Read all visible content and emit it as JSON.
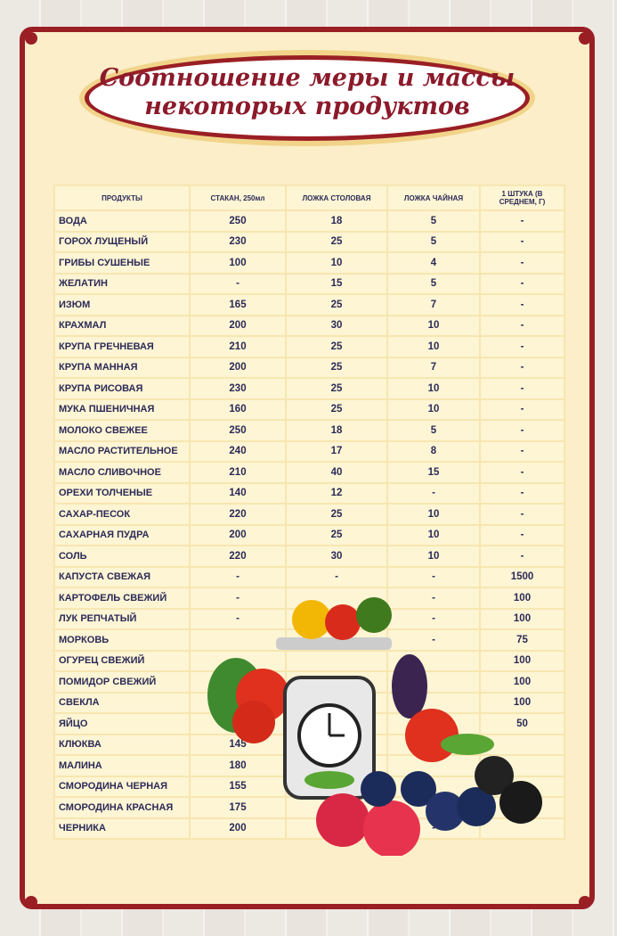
{
  "title": [
    "Соотношение меры и массы",
    "некоторых продуктов"
  ],
  "table": {
    "header": [
      "ПРОДУКТЫ",
      "СТАКАН, 250мл",
      "ЛОЖКА СТОЛОВАЯ",
      "ЛОЖКА ЧАЙНАЯ",
      "1 ШТУКА (В СРЕДНЕМ, Г)"
    ],
    "rows": [
      [
        "ВОДА",
        "250",
        "18",
        "5",
        "-"
      ],
      [
        "ГОРОХ ЛУЩЕНЫЙ",
        "230",
        "25",
        "5",
        "-"
      ],
      [
        "ГРИБЫ СУШЕНЫЕ",
        "100",
        "10",
        "4",
        "-"
      ],
      [
        "ЖЕЛАТИН",
        "-",
        "15",
        "5",
        "-"
      ],
      [
        "ИЗЮМ",
        "165",
        "25",
        "7",
        "-"
      ],
      [
        "КРАХМАЛ",
        "200",
        "30",
        "10",
        "-"
      ],
      [
        "КРУПА ГРЕЧНЕВАЯ",
        "210",
        "25",
        "10",
        "-"
      ],
      [
        "КРУПА МАННАЯ",
        "200",
        "25",
        "7",
        "-"
      ],
      [
        "КРУПА РИСОВАЯ",
        "230",
        "25",
        "10",
        "-"
      ],
      [
        "МУКА ПШЕНИЧНАЯ",
        "160",
        "25",
        "10",
        "-"
      ],
      [
        "МОЛОКО СВЕЖЕЕ",
        "250",
        "18",
        "5",
        "-"
      ],
      [
        "МАСЛО РАСТИТЕЛЬНОЕ",
        "240",
        "17",
        "8",
        "-"
      ],
      [
        "МАСЛО СЛИВОЧНОЕ",
        "210",
        "40",
        "15",
        "-"
      ],
      [
        "ОРЕХИ ТОЛЧЕНЫЕ",
        "140",
        "12",
        "-",
        "-"
      ],
      [
        "САХАР-ПЕСОК",
        "220",
        "25",
        "10",
        "-"
      ],
      [
        "САХАРНАЯ ПУДРА",
        "200",
        "25",
        "10",
        "-"
      ],
      [
        "СОЛЬ",
        "220",
        "30",
        "10",
        "-"
      ],
      [
        "КАПУСТА СВЕЖАЯ",
        "-",
        "-",
        "-",
        "1500"
      ],
      [
        "КАРТОФЕЛЬ СВЕЖИЙ",
        "-",
        null,
        "-",
        "100"
      ],
      [
        "ЛУК РЕПЧАТЫЙ",
        "-",
        null,
        "-",
        "100"
      ],
      [
        "МОРКОВЬ",
        null,
        null,
        "-",
        "75"
      ],
      [
        "ОГУРЕЦ СВЕЖИЙ",
        null,
        null,
        null,
        "100"
      ],
      [
        "ПОМИДОР СВЕЖИЙ",
        null,
        null,
        null,
        "100"
      ],
      [
        "СВЕКЛА",
        null,
        null,
        null,
        "100"
      ],
      [
        "ЯЙЦО",
        "-",
        null,
        null,
        "50"
      ],
      [
        "КЛЮКВА",
        "145",
        null,
        null,
        null
      ],
      [
        "МАЛИНА",
        "180",
        null,
        null,
        null
      ],
      [
        "СМОРОДИНА ЧЕРНАЯ",
        "155",
        null,
        null,
        null
      ],
      [
        "СМОРОДИНА КРАСНАЯ",
        "175",
        null,
        null,
        null
      ],
      [
        "ЧЕРНИКА",
        "200",
        "-",
        "-",
        null
      ]
    ]
  }
}
